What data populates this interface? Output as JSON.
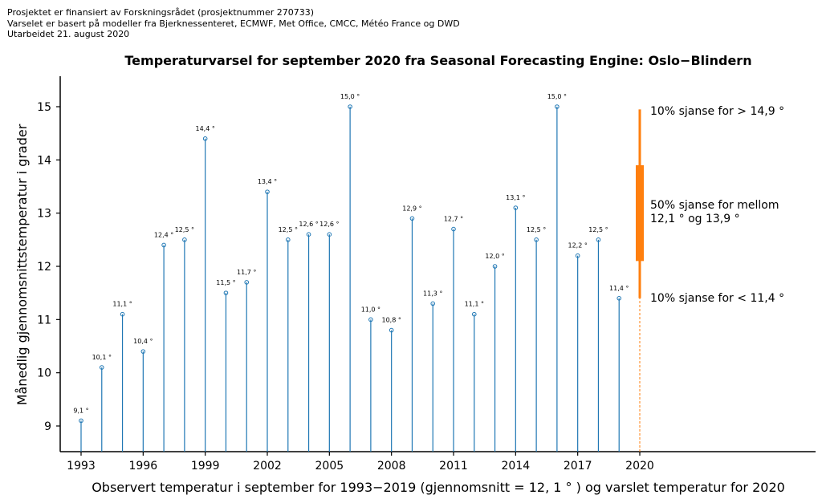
{
  "notes": [
    "Prosjektet er finansiert av Forskningsrådet (prosjektnummer 270733)",
    "Varselet er basert på modeller fra Bjerknessenteret, ECMWF, Met Office, CMCC, Météo France og DWD",
    "Utarbeidet 21. august 2020"
  ],
  "chart_data": {
    "type": "stem",
    "title": "Temperaturvarsel for september 2020 fra Seasonal Forecasting Engine: Oslo−Blindern",
    "xlabel": "Observert temperatur i september for 1993−2019 (gjennomsnitt = 12, 1 ° ) og varslet temperatur for 2020",
    "ylabel": "Månedlig gjennomsnittstemperatur i grader",
    "x": [
      1993,
      1994,
      1995,
      1996,
      1997,
      1998,
      1999,
      2000,
      2001,
      2002,
      2003,
      2004,
      2005,
      2006,
      2007,
      2008,
      2009,
      2010,
      2011,
      2012,
      2013,
      2014,
      2015,
      2016,
      2017,
      2018,
      2019
    ],
    "values": [
      9.1,
      10.1,
      11.1,
      10.4,
      12.4,
      12.5,
      14.4,
      11.5,
      11.7,
      13.4,
      12.5,
      12.6,
      12.6,
      15.0,
      11.0,
      10.8,
      12.9,
      11.3,
      12.7,
      11.1,
      12.0,
      13.1,
      12.5,
      15.0,
      12.2,
      12.5,
      11.4
    ],
    "labels": [
      "9,1 °",
      "10,1 °",
      "11,1 °",
      "10,4 °",
      "12,4 °",
      "12,5 °",
      "14,4 °",
      "11,5 °",
      "11,7 °",
      "13,4 °",
      "12,5 °",
      "12,6 °",
      "12,6 °",
      "15,0 °",
      "11,0 °",
      "10,8 °",
      "12,9 °",
      "11,3 °",
      "12,7 °",
      "11,1 °",
      "12,0 °",
      "13,1 °",
      "12,5 °",
      "15,0 °",
      "12,2 °",
      "12,5 °",
      "11,4 °"
    ],
    "xticks": [
      "1993",
      "1996",
      "1999",
      "2002",
      "2005",
      "2008",
      "2011",
      "2014",
      "2017",
      "2020"
    ],
    "yticks": [
      "9",
      "10",
      "11",
      "12",
      "13",
      "14",
      "15"
    ],
    "ylim": [
      8.52,
      15.6
    ],
    "xlim": [
      1992.1,
      2028.5
    ],
    "forecast": {
      "year": 2020,
      "p10": 11.4,
      "p25": 12.1,
      "p75": 13.9,
      "p90": 14.95
    },
    "annotations": [
      "10% sjanse for > 14,9 °",
      "50% sjanse for mellom",
      "12,1 °  og 13,9 °",
      "10% sjanse for < 11,4 °"
    ],
    "colors": {
      "stem": "#1f77b4",
      "forecast": "#ff7f0e"
    }
  }
}
